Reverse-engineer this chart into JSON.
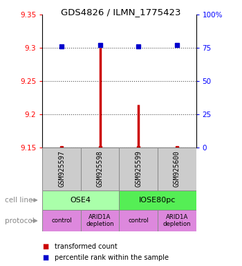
{
  "title": "GDS4826 / ILMN_1775423",
  "samples": [
    "GSM925597",
    "GSM925598",
    "GSM925599",
    "GSM925600"
  ],
  "transformed_counts": [
    9.152,
    9.3,
    9.215,
    9.152
  ],
  "percentile_ranks": [
    76,
    77,
    76,
    77
  ],
  "ylim_left": [
    9.15,
    9.35
  ],
  "ylim_right": [
    0,
    100
  ],
  "yticks_left": [
    9.15,
    9.2,
    9.25,
    9.3,
    9.35
  ],
  "yticks_right": [
    0,
    25,
    50,
    75,
    100
  ],
  "ytick_labels_right": [
    "0",
    "25",
    "50",
    "75",
    "100%"
  ],
  "bar_color": "#cc0000",
  "dot_color": "#0000cc",
  "cell_line_spans": [
    {
      "label": "OSE4",
      "start": 0,
      "end": 1,
      "color": "#aaffaa"
    },
    {
      "label": "IOSE80pc",
      "start": 2,
      "end": 3,
      "color": "#55ee55"
    }
  ],
  "protocol_labels": [
    "control",
    "ARID1A\ndepletion",
    "control",
    "ARID1A\ndepletion"
  ],
  "protocol_color": "#dd88dd",
  "sample_box_color": "#cccccc",
  "row_label_cell_line": "cell line",
  "row_label_protocol": "protocol",
  "legend_bar_label": "transformed count",
  "legend_dot_label": "percentile rank within the sample",
  "title_fontsize": 9.5
}
